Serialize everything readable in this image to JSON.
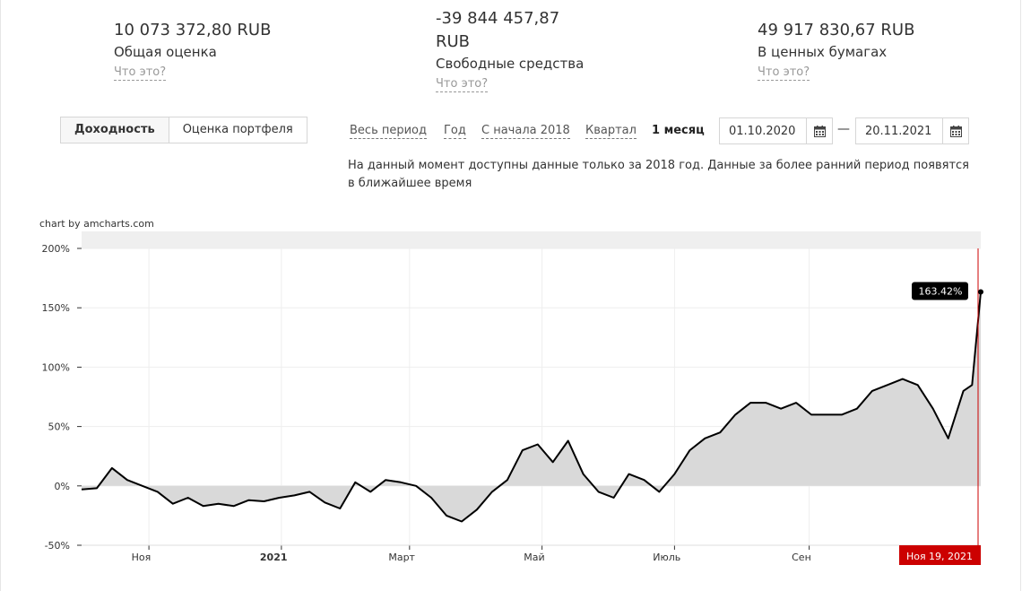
{
  "summary": {
    "total": {
      "value": "10 073 372,80 RUB",
      "label": "Общая оценка",
      "help": "Что это?"
    },
    "free": {
      "value_line1": "-39 844 457,87",
      "value_line2": "RUB",
      "label": "Свободные средства",
      "help": "Что это?"
    },
    "securities": {
      "value": "49 917 830,67 RUB",
      "label": "В ценных бумагах",
      "help": "Что это?"
    }
  },
  "tabs": [
    {
      "label": "Доходность",
      "active": true
    },
    {
      "label": "Оценка портфеля",
      "active": false
    }
  ],
  "periods": {
    "all": "Весь период",
    "year": "Год",
    "since2018": "С начала 2018",
    "quarter": "Квартал",
    "month": "1 месяц",
    "active": "month"
  },
  "date_from": "01.10.2020",
  "date_to": "20.11.2021",
  "date_separator": "—",
  "notice": "На данный момент доступны данные только за 2018 год. Данные за более ранний период появятся в ближайшее время",
  "icons": {
    "calendar": "calendar-icon"
  },
  "colors": {
    "line": "#000000",
    "fill": "#d9d9d9",
    "cursor": "#cc0000",
    "scrollbar": "#efefef",
    "badge": "#000000"
  },
  "chart_data": {
    "type": "area",
    "credit": "chart by amcharts.com",
    "y_unit": "%",
    "ylim": [
      -50,
      200
    ],
    "y_ticks": [
      "200%",
      "150%",
      "100%",
      "50%",
      "0%",
      "-50%"
    ],
    "x_ticks": [
      {
        "label": "Ноя",
        "bold": false
      },
      {
        "label": "2021",
        "bold": true
      },
      {
        "label": "Март",
        "bold": false
      },
      {
        "label": "Май",
        "bold": false
      },
      {
        "label": "Июль",
        "bold": false
      },
      {
        "label": "Сен",
        "bold": false
      }
    ],
    "cursor_label": "Ноя 19, 2021",
    "last_value_label": "163.42%",
    "grid": true,
    "series": [
      {
        "x": [
          "2020-10-01",
          "2020-10-08",
          "2020-10-15",
          "2020-10-22",
          "2020-10-29",
          "2020-11-05",
          "2020-11-12",
          "2020-11-19",
          "2020-11-26",
          "2020-12-03",
          "2020-12-10",
          "2020-12-17",
          "2020-12-24",
          "2020-12-31",
          "2021-01-07",
          "2021-01-14",
          "2021-01-21",
          "2021-01-28",
          "2021-02-04",
          "2021-02-11",
          "2021-02-18",
          "2021-02-25",
          "2021-03-04",
          "2021-03-11",
          "2021-03-18",
          "2021-03-25",
          "2021-04-01",
          "2021-04-08",
          "2021-04-15",
          "2021-04-22",
          "2021-04-29",
          "2021-05-06",
          "2021-05-13",
          "2021-05-20",
          "2021-05-27",
          "2021-06-03",
          "2021-06-10",
          "2021-06-17",
          "2021-06-24",
          "2021-07-01",
          "2021-07-08",
          "2021-07-15",
          "2021-07-22",
          "2021-07-29",
          "2021-08-05",
          "2021-08-12",
          "2021-08-19",
          "2021-08-26",
          "2021-09-02",
          "2021-09-09",
          "2021-09-16",
          "2021-09-23",
          "2021-09-30",
          "2021-10-07",
          "2021-10-14",
          "2021-10-21",
          "2021-10-28",
          "2021-11-04",
          "2021-11-11",
          "2021-11-15",
          "2021-11-19"
        ],
        "values": [
          -3,
          -2,
          15,
          5,
          0,
          -5,
          -15,
          -10,
          -17,
          -15,
          -17,
          -12,
          -13,
          -10,
          -8,
          -5,
          -14,
          -19,
          3,
          -5,
          5,
          3,
          0,
          -10,
          -25,
          -30,
          -20,
          -5,
          5,
          30,
          35,
          20,
          38,
          10,
          -5,
          -10,
          10,
          5,
          -5,
          10,
          30,
          40,
          45,
          60,
          70,
          70,
          65,
          70,
          60,
          60,
          60,
          65,
          80,
          85,
          90,
          85,
          65,
          40,
          80,
          85,
          163.4
        ],
        "debug_note": null
      }
    ]
  }
}
